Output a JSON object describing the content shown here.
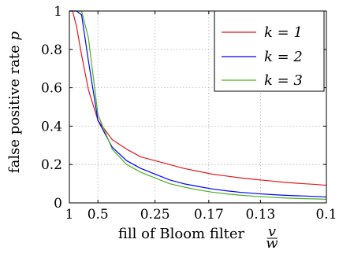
{
  "chart_data": {
    "type": "line",
    "xlabel": "fill of Bloom filter",
    "xlabel_fraction": {
      "numerator": "v",
      "denominator": "w"
    },
    "ylabel": "false positive rate",
    "ylabel_symbol": "p",
    "x_scale": "reciprocal",
    "xlim": [
      1,
      0.1
    ],
    "ylim": [
      0,
      1
    ],
    "x_ticks": [
      {
        "value": 1,
        "label": "1"
      },
      {
        "value": 0.5,
        "label": "0.5"
      },
      {
        "value": 0.25,
        "label": "0.25"
      },
      {
        "value": 0.17,
        "label": "0.17"
      },
      {
        "value": 0.13,
        "label": "0.13"
      },
      {
        "value": 0.1,
        "label": "0.1"
      }
    ],
    "y_ticks": [
      {
        "value": 0,
        "label": "0"
      },
      {
        "value": 0.2,
        "label": "0.2"
      },
      {
        "value": 0.4,
        "label": "0.4"
      },
      {
        "value": 0.6,
        "label": "0.6"
      },
      {
        "value": 0.8,
        "label": "0.8"
      },
      {
        "value": 1,
        "label": "1"
      }
    ],
    "grid": true,
    "legend": "top-right",
    "x": [
      1,
      0.9,
      0.8,
      0.7,
      0.6,
      0.5,
      0.4,
      0.333,
      0.286,
      0.25,
      0.222,
      0.2,
      0.182,
      0.167,
      0.154,
      0.143,
      0.133,
      0.125,
      0.118,
      0.111,
      0.105,
      0.1
    ],
    "series": [
      {
        "name": "k = 1",
        "k_value": "1",
        "color": "#e41a1c",
        "values": [
          1,
          1,
          0.92,
          0.77,
          0.59,
          0.43,
          0.33,
          0.28,
          0.24,
          0.22,
          0.2,
          0.18,
          0.165,
          0.15,
          0.14,
          0.13,
          0.122,
          0.115,
          0.108,
          0.102,
          0.097,
          0.092
        ]
      },
      {
        "name": "k = 2",
        "k_value": "2",
        "color": "#0000ff",
        "values": [
          1,
          1,
          1,
          0.98,
          0.74,
          0.43,
          0.29,
          0.22,
          0.18,
          0.15,
          0.12,
          0.1,
          0.086,
          0.073,
          0.063,
          0.055,
          0.049,
          0.044,
          0.04,
          0.037,
          0.034,
          0.031
        ]
      },
      {
        "name": "k = 3",
        "k_value": "3",
        "color": "#4daf23",
        "values": [
          1,
          1,
          1,
          1,
          0.86,
          0.46,
          0.28,
          0.2,
          0.16,
          0.13,
          0.1,
          0.083,
          0.068,
          0.056,
          0.047,
          0.04,
          0.034,
          0.03,
          0.026,
          0.023,
          0.021,
          0.019
        ]
      }
    ]
  }
}
